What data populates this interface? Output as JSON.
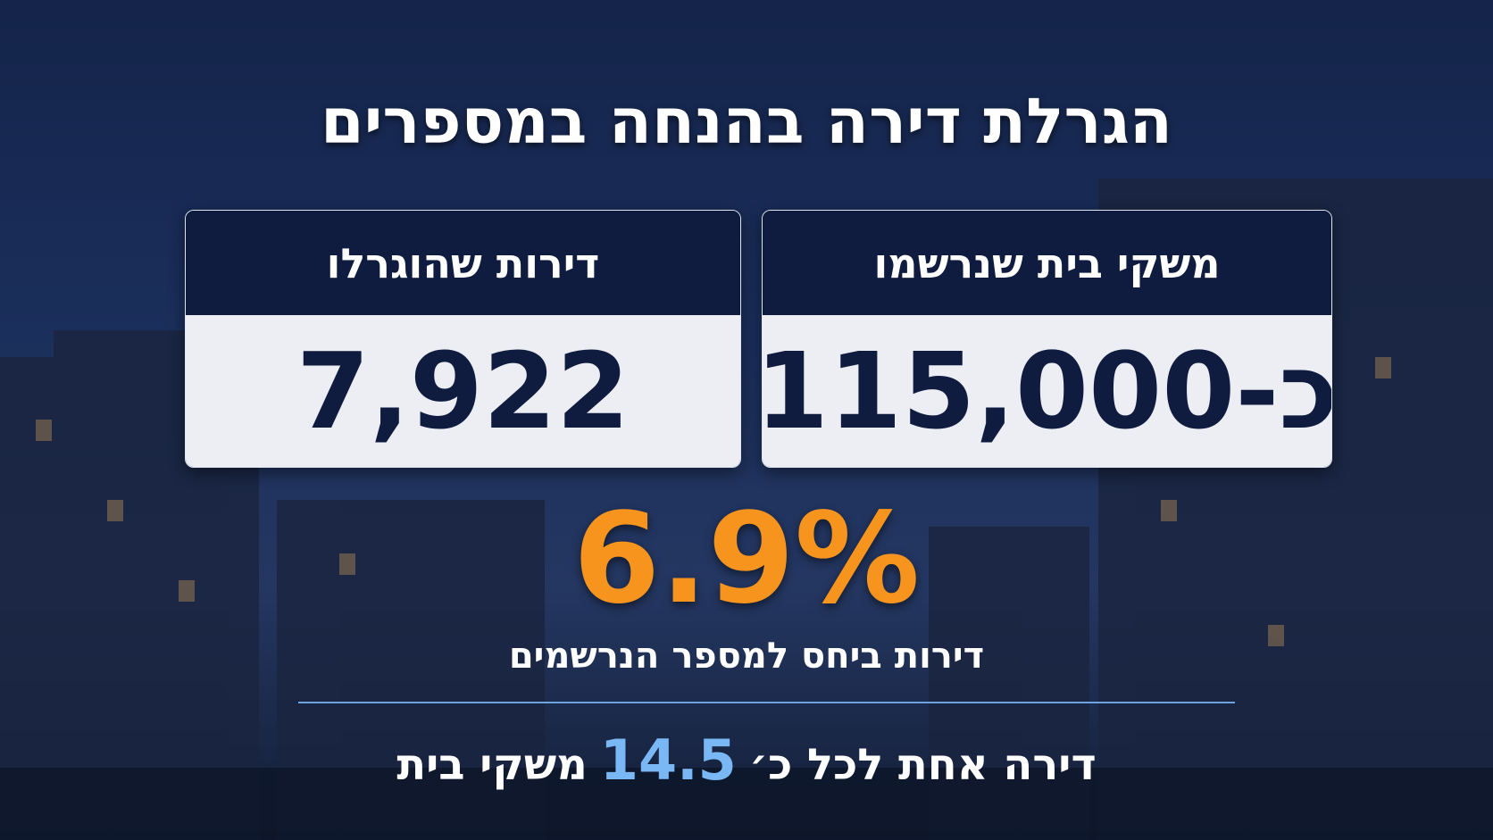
{
  "header": {
    "title": "הגרלת דירה בהנחה במספרים"
  },
  "cards": [
    {
      "label": "משקי בית שנרשמו",
      "value": "כ-115,000"
    },
    {
      "label": "דירות שהוגרלו",
      "value": "7,922"
    }
  ],
  "highlight": {
    "value": "6.9%",
    "caption": "דירות ביחס למספר הנרשמים"
  },
  "footer": {
    "before": "דירה אחת לכל כ׳",
    "number": "14.5",
    "after": "משקי בית"
  }
}
